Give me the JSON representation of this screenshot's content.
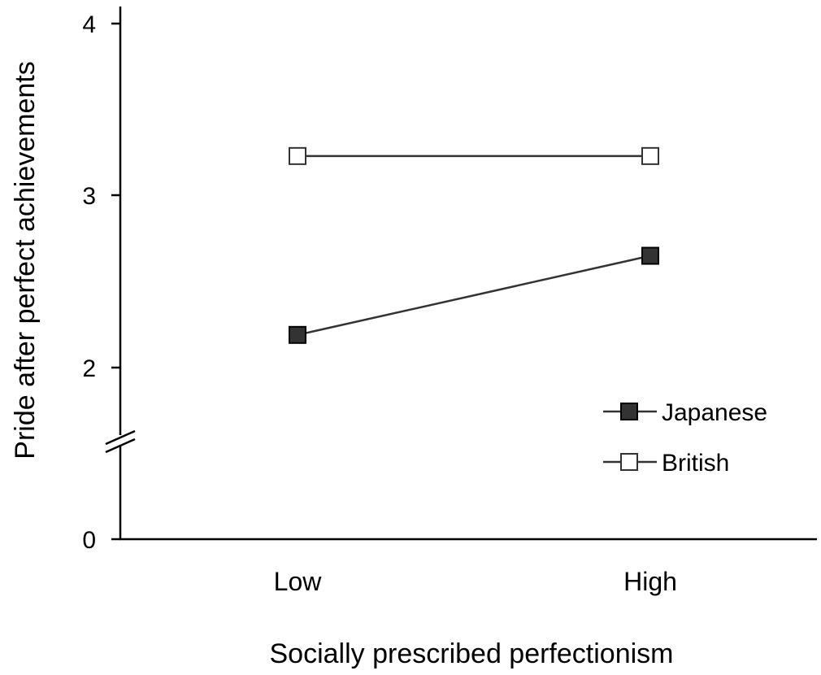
{
  "chart_data": {
    "type": "line",
    "title": "",
    "xlabel": "Socially prescribed perfectionism",
    "ylabel": "Pride after perfect achievements",
    "categories": [
      "Low",
      "High"
    ],
    "yticks": [
      "0",
      "2",
      "3",
      "4"
    ],
    "ylim": [
      0,
      4
    ],
    "axis_break": true,
    "grid": false,
    "legend_position": "right",
    "series": [
      {
        "name": "Japanese",
        "values": [
          2.19,
          2.65
        ],
        "marker": "filled-square",
        "color": "#333333"
      },
      {
        "name": "British",
        "values": [
          3.23,
          3.23
        ],
        "marker": "open-square",
        "color": "#ffffff"
      }
    ]
  }
}
